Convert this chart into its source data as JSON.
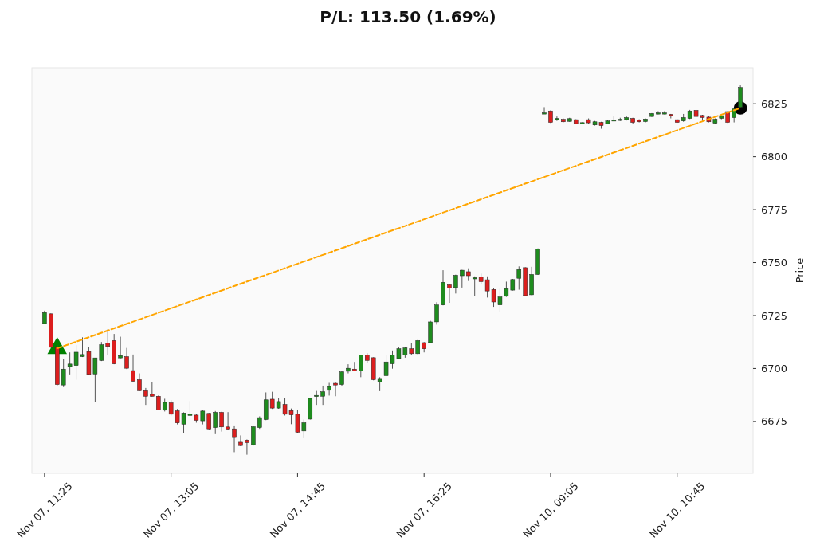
{
  "chart_data": {
    "type": "candlestick",
    "title": "P/L: 113.50 (1.69%)",
    "ylabel": "Price",
    "categories": [
      "Nov 07, 11:25",
      null,
      null,
      null,
      null,
      null,
      null,
      null,
      null,
      null,
      null,
      null,
      null,
      null,
      null,
      null,
      null,
      null,
      null,
      null,
      "Nov 07, 13:05",
      null,
      null,
      null,
      null,
      null,
      null,
      null,
      null,
      null,
      null,
      null,
      null,
      null,
      null,
      null,
      null,
      null,
      null,
      null,
      "Nov 07, 14:45",
      null,
      null,
      null,
      null,
      null,
      null,
      null,
      null,
      null,
      null,
      null,
      null,
      null,
      null,
      null,
      null,
      null,
      null,
      null,
      "Nov 07, 16:25",
      null,
      null,
      null,
      null,
      null,
      null,
      null,
      null,
      null,
      null,
      null,
      null,
      null,
      null,
      null,
      null,
      null,
      null,
      null,
      "Nov 10, 09:05",
      null,
      null,
      null,
      null,
      null,
      null,
      null,
      null,
      null,
      null,
      null,
      null,
      null,
      null,
      null,
      null,
      null,
      null,
      null,
      "Nov 10, 10:45",
      null,
      null,
      null,
      null,
      null,
      null,
      null,
      null,
      null,
      null
    ],
    "ylim": [
      6650.5,
      6842
    ],
    "grid": false,
    "yticks": [
      6675,
      6700,
      6725,
      6750,
      6775,
      6800,
      6825
    ],
    "ohlc": [
      [
        6721.2,
        6727.3,
        6721,
        6726.4
      ],
      [
        6725.8,
        6726,
        6709.8,
        6710
      ],
      [
        6710,
        6711,
        6691.9,
        6692.4
      ],
      [
        6692.2,
        6704.3,
        6691.2,
        6699.7
      ],
      [
        6700.9,
        6707.6,
        6697.2,
        6702.1
      ],
      [
        6701.4,
        6711,
        6694.7,
        6707.7
      ],
      [
        6705.6,
        6714.7,
        6705.4,
        6706.6
      ],
      [
        6708,
        6710.1,
        6696.9,
        6697.2
      ],
      [
        6697.4,
        6705,
        6684.2,
        6705
      ],
      [
        6703.8,
        6712.5,
        6703.5,
        6711.2
      ],
      [
        6712.1,
        6718.5,
        6706.4,
        6710.4
      ],
      [
        6713.2,
        6716.3,
        6702,
        6702.2
      ],
      [
        6705,
        6715,
        6704.8,
        6706.1
      ],
      [
        6705.6,
        6709.7,
        6699.7,
        6700.1
      ],
      [
        6699,
        6706.6,
        6693.8,
        6694
      ],
      [
        6694.7,
        6697.7,
        6689.3,
        6689.5
      ],
      [
        6689.5,
        6690.8,
        6682.8,
        6686.9
      ],
      [
        6687.8,
        6693.7,
        6686.7,
        6686.9
      ],
      [
        6686.9,
        6687.2,
        6680.3,
        6680.5
      ],
      [
        6680.3,
        6685.7,
        6679.7,
        6684
      ],
      [
        6683.8,
        6685,
        6677.8,
        6678.4
      ],
      [
        6680,
        6680.9,
        6673.6,
        6674.3
      ],
      [
        6673.7,
        6679.3,
        6669.5,
        6679
      ],
      [
        6678.2,
        6684.6,
        6678,
        6678.4
      ],
      [
        6678,
        6678.4,
        6674.4,
        6675.5
      ],
      [
        6675.3,
        6680.3,
        6673.6,
        6679.9
      ],
      [
        6678.8,
        6679,
        6671.1,
        6671.5
      ],
      [
        6672.1,
        6679.9,
        6669,
        6679.3
      ],
      [
        6679.3,
        6679.6,
        6670.2,
        6672.4
      ],
      [
        6672.4,
        6679.4,
        6671.2,
        6671.4
      ],
      [
        6671.5,
        6673.1,
        6660.5,
        6667.4
      ],
      [
        6665.2,
        6668.4,
        6663.3,
        6663.6
      ],
      [
        6666.2,
        6666.5,
        6659.3,
        6665
      ],
      [
        6664,
        6672.7,
        6663.6,
        6672.5
      ],
      [
        6672.1,
        6677.4,
        6671.5,
        6676.8
      ],
      [
        6675.9,
        6688.7,
        6675.6,
        6685.2
      ],
      [
        6685.5,
        6689,
        6680.9,
        6681.3
      ],
      [
        6681.3,
        6685.9,
        6681,
        6684.4
      ],
      [
        6683,
        6685.9,
        6677.8,
        6678.4
      ],
      [
        6680.1,
        6681.1,
        6673.7,
        6678.1
      ],
      [
        6678.4,
        6680.6,
        6669.6,
        6669.9
      ],
      [
        6670.5,
        6675.9,
        6667.1,
        6674.4
      ],
      [
        6676.1,
        6686.2,
        6675.9,
        6685.9
      ],
      [
        6687,
        6689.4,
        6682.8,
        6687.3
      ],
      [
        6686.9,
        6691.9,
        6682.8,
        6689
      ],
      [
        6689.7,
        6693.2,
        6687.2,
        6691.5
      ],
      [
        6693,
        6693.4,
        6686.9,
        6692.2
      ],
      [
        6692.4,
        6698.7,
        6691.5,
        6698.4
      ],
      [
        6698.7,
        6702,
        6697.7,
        6700.1
      ],
      [
        6699.7,
        6703.1,
        6698.7,
        6698.8
      ],
      [
        6698.8,
        6706.3,
        6695.9,
        6706.3
      ],
      [
        6706.3,
        6707.2,
        6702.8,
        6703.8
      ],
      [
        6705.1,
        6705.3,
        6694.4,
        6694.7
      ],
      [
        6693.7,
        6695.9,
        6689.3,
        6695.3
      ],
      [
        6696.6,
        6706.3,
        6696.3,
        6703.1
      ],
      [
        6702.2,
        6708.5,
        6699.9,
        6706.3
      ],
      [
        6704.7,
        6710.1,
        6704.4,
        6709.3
      ],
      [
        6706.3,
        6710.3,
        6705.1,
        6709.7
      ],
      [
        6709.3,
        6712.2,
        6706.5,
        6707
      ],
      [
        6707,
        6713.5,
        6706.7,
        6713.2
      ],
      [
        6712.2,
        6712.5,
        6707.6,
        6709.3
      ],
      [
        6712.2,
        6722.5,
        6712,
        6722
      ],
      [
        6722,
        6731.3,
        6720.7,
        6730
      ],
      [
        6730,
        6746.4,
        6729.8,
        6740.7
      ],
      [
        6739.5,
        6740,
        6731,
        6737.9
      ],
      [
        6738.2,
        6744.3,
        6735.4,
        6744
      ],
      [
        6743.8,
        6746.6,
        6738.2,
        6746.4
      ],
      [
        6745.7,
        6747.3,
        6741.3,
        6743.8
      ],
      [
        6742.3,
        6743.5,
        6734.1,
        6742.9
      ],
      [
        6743.2,
        6744.8,
        6740,
        6741
      ],
      [
        6741.9,
        6743.5,
        6733.5,
        6736.6
      ],
      [
        6737.3,
        6737.9,
        6729.1,
        6731.4
      ],
      [
        6730,
        6737.7,
        6726.6,
        6733.8
      ],
      [
        6734.1,
        6741,
        6733.8,
        6737.7
      ],
      [
        6737,
        6742.3,
        6736.8,
        6742
      ],
      [
        6742.6,
        6748.2,
        6737.2,
        6746.7
      ],
      [
        6747.6,
        6747.8,
        6734.1,
        6734.4
      ],
      [
        6734.8,
        6748,
        6734.6,
        6744.4
      ],
      [
        6744.4,
        6756.7,
        6744.2,
        6756.5
      ],
      [
        6820.5,
        6823.4,
        6820.3,
        6820.7
      ],
      [
        6821.6,
        6821.9,
        6815.9,
        6816.2
      ],
      [
        6817.9,
        6819,
        6816.9,
        6818.1
      ],
      [
        6817.7,
        6818.1,
        6816.2,
        6816.5
      ],
      [
        6816.7,
        6818.4,
        6816.5,
        6818
      ],
      [
        6817.5,
        6817.7,
        6815.3,
        6815.6
      ],
      [
        6816,
        6816.2,
        6815.7,
        6816.1
      ],
      [
        6817.5,
        6818.1,
        6815.6,
        6816
      ],
      [
        6815,
        6816.9,
        6814.7,
        6816.5
      ],
      [
        6816.2,
        6816.5,
        6813.2,
        6814.7
      ],
      [
        6815.6,
        6817.5,
        6815.3,
        6816.9
      ],
      [
        6817.2,
        6819,
        6816.9,
        6817.4
      ],
      [
        6817.3,
        6818.4,
        6816.9,
        6817.7
      ],
      [
        6817.5,
        6819,
        6817.1,
        6818.5
      ],
      [
        6818.1,
        6818.4,
        6815.3,
        6816.2
      ],
      [
        6817.2,
        6817.7,
        6816.2,
        6816.5
      ],
      [
        6816.6,
        6818.1,
        6816.2,
        6817.8
      ],
      [
        6819,
        6820.6,
        6818.8,
        6820.4
      ],
      [
        6820.5,
        6821.5,
        6820,
        6820.7
      ],
      [
        6820.5,
        6821.5,
        6820,
        6820.7
      ],
      [
        6820,
        6820.2,
        6818.1,
        6819.5
      ],
      [
        6817.5,
        6817.7,
        6816,
        6816.2
      ],
      [
        6816.9,
        6820.2,
        6816.5,
        6818.5
      ],
      [
        6818.1,
        6822.1,
        6817.8,
        6821.6
      ],
      [
        6821.9,
        6822.1,
        6818.8,
        6819
      ],
      [
        6819.5,
        6819.8,
        6816.9,
        6818.5
      ],
      [
        6818.7,
        6819.1,
        6816.2,
        6816.5
      ],
      [
        6815.8,
        6818.1,
        6815.6,
        6817.7
      ],
      [
        6818.1,
        6819.6,
        6817.7,
        6819.4
      ],
      [
        6821.3,
        6821.5,
        6815.9,
        6816.2
      ],
      [
        6818.5,
        6823.2,
        6816.2,
        6822.6
      ],
      [
        6823.4,
        6833.7,
        6823,
        6832.7
      ]
    ],
    "colors": [
      "#1e8c1e",
      "#dc1e1e",
      "#dc1e1e",
      "#1e8c1e",
      "#1e8c1e",
      "#1e8c1e",
      "#1e8c1e",
      "#dc1e1e",
      "#1e8c1e",
      "#1e8c1e",
      "#dc1e1e",
      "#dc1e1e",
      "#1e8c1e",
      "#dc1e1e",
      "#dc1e1e",
      "#dc1e1e",
      "#dc1e1e",
      "#dc1e1e",
      "#dc1e1e",
      "#1e8c1e",
      "#dc1e1e",
      "#dc1e1e",
      "#1e8c1e",
      "#1e8c1e",
      "#dc1e1e",
      "#1e8c1e",
      "#dc1e1e",
      "#1e8c1e",
      "#dc1e1e",
      "#dc1e1e",
      "#dc1e1e",
      "#dc1e1e",
      "#dc1e1e",
      "#1e8c1e",
      "#1e8c1e",
      "#1e8c1e",
      "#dc1e1e",
      "#1e8c1e",
      "#dc1e1e",
      "#dc1e1e",
      "#dc1e1e",
      "#1e8c1e",
      "#1e8c1e",
      "#1e8c1e",
      "#1e8c1e",
      "#1e8c1e",
      "#dc1e1e",
      "#1e8c1e",
      "#1e8c1e",
      "#dc1e1e",
      "#1e8c1e",
      "#dc1e1e",
      "#dc1e1e",
      "#1e8c1e",
      "#1e8c1e",
      "#1e8c1e",
      "#1e8c1e",
      "#1e8c1e",
      "#dc1e1e",
      "#1e8c1e",
      "#dc1e1e",
      "#1e8c1e",
      "#1e8c1e",
      "#1e8c1e",
      "#dc1e1e",
      "#1e8c1e",
      "#1e8c1e",
      "#dc1e1e",
      "#1e8c1e",
      "#dc1e1e",
      "#dc1e1e",
      "#dc1e1e",
      "#1e8c1e",
      "#1e8c1e",
      "#1e8c1e",
      "#1e8c1e",
      "#dc1e1e",
      "#1e8c1e",
      "#1e8c1e",
      "#1e8c1e",
      "#dc1e1e",
      "#1e8c1e",
      "#dc1e1e",
      "#1e8c1e",
      "#dc1e1e",
      "#1e8c1e",
      "#dc1e1e",
      "#1e8c1e",
      "#dc1e1e",
      "#1e8c1e",
      "#1e8c1e",
      "#1e8c1e",
      "#1e8c1e",
      "#dc1e1e",
      "#dc1e1e",
      "#1e8c1e",
      "#1e8c1e",
      "#1e8c1e",
      "#1e8c1e",
      "#dc1e1e",
      "#dc1e1e",
      "#1e8c1e",
      "#1e8c1e",
      "#dc1e1e",
      "#dc1e1e",
      "#dc1e1e",
      "#1e8c1e",
      "#1e8c1e",
      "#dc1e1e",
      "#1e8c1e",
      "#1e8c1e"
    ],
    "series": [
      {
        "type": "line",
        "color": "#ffa500",
        "line_style": "dashed",
        "values": [
          null,
          null,
          6709.5,
          null,
          null,
          null,
          null,
          null,
          null,
          null,
          null,
          null,
          null,
          null,
          null,
          null,
          null,
          null,
          null,
          null,
          null,
          null,
          null,
          null,
          null,
          null,
          null,
          null,
          null,
          null,
          null,
          null,
          null,
          null,
          null,
          null,
          null,
          null,
          null,
          null,
          null,
          null,
          null,
          null,
          null,
          null,
          null,
          null,
          null,
          null,
          null,
          null,
          null,
          null,
          null,
          null,
          null,
          null,
          null,
          null,
          null,
          null,
          null,
          null,
          null,
          null,
          null,
          null,
          null,
          null,
          null,
          null,
          null,
          null,
          null,
          null,
          null,
          null,
          null,
          null,
          null,
          null,
          null,
          null,
          null,
          null,
          null,
          null,
          null,
          null,
          null,
          null,
          null,
          null,
          null,
          null,
          null,
          null,
          null,
          null,
          null,
          null,
          null,
          null,
          null,
          null,
          null,
          null,
          null,
          null,
          6823
        ]
      },
      {
        "type": "scatter",
        "color": "#008000",
        "marker": "triangle",
        "values": [
          null,
          null,
          6709.5,
          null,
          null,
          null,
          null,
          null,
          null,
          null,
          null,
          null,
          null,
          null,
          null,
          null,
          null,
          null,
          null,
          null,
          null,
          null,
          null,
          null,
          null,
          null,
          null,
          null,
          null,
          null,
          null,
          null,
          null,
          null,
          null,
          null,
          null,
          null,
          null,
          null,
          null,
          null,
          null,
          null,
          null,
          null,
          null,
          null,
          null,
          null,
          null,
          null,
          null,
          null,
          null,
          null,
          null,
          null,
          null,
          null,
          null,
          null,
          null,
          null,
          null,
          null,
          null,
          null,
          null,
          null,
          null,
          null,
          null,
          null,
          null,
          null,
          null,
          null,
          null,
          null,
          null,
          null,
          null,
          null,
          null,
          null,
          null,
          null,
          null,
          null,
          null,
          null,
          null,
          null,
          null,
          null,
          null,
          null,
          null,
          null,
          null,
          null,
          null,
          null,
          null,
          null,
          null,
          null,
          null,
          null,
          null
        ]
      },
      {
        "type": "scatter",
        "color": "#000000",
        "marker": "circle",
        "values": [
          null,
          null,
          null,
          null,
          null,
          null,
          null,
          null,
          null,
          null,
          null,
          null,
          null,
          null,
          null,
          null,
          null,
          null,
          null,
          null,
          null,
          null,
          null,
          null,
          null,
          null,
          null,
          null,
          null,
          null,
          null,
          null,
          null,
          null,
          null,
          null,
          null,
          null,
          null,
          null,
          null,
          null,
          null,
          null,
          null,
          null,
          null,
          null,
          null,
          null,
          null,
          null,
          null,
          null,
          null,
          null,
          null,
          null,
          null,
          null,
          null,
          null,
          null,
          null,
          null,
          null,
          null,
          null,
          null,
          null,
          null,
          null,
          null,
          null,
          null,
          null,
          null,
          null,
          null,
          null,
          null,
          null,
          null,
          null,
          null,
          null,
          null,
          null,
          null,
          null,
          null,
          null,
          null,
          null,
          null,
          null,
          null,
          null,
          null,
          null,
          null,
          null,
          null,
          null,
          null,
          null,
          null,
          null,
          null,
          null,
          6823
        ]
      }
    ]
  }
}
